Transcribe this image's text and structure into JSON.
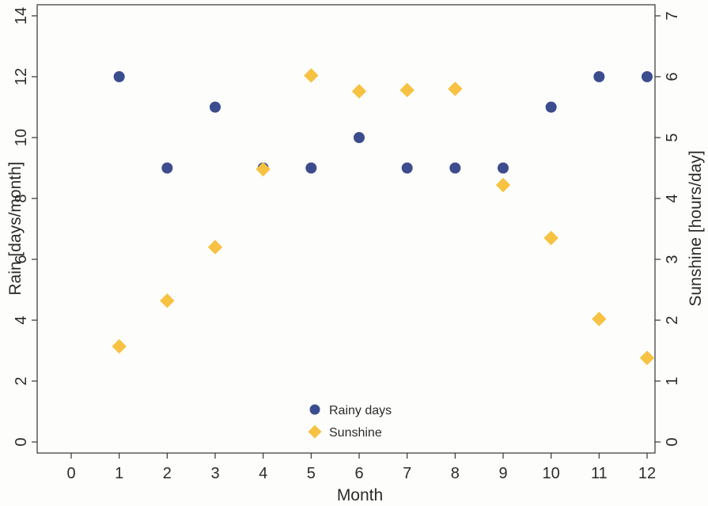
{
  "chart_data": {
    "type": "scatter",
    "title": "",
    "xlabel": "Month",
    "ylabel_left": "Rain [days/month]",
    "ylabel_right": "Sunshine [hours/day]",
    "xlim": [
      0,
      12
    ],
    "ylim_left": [
      0,
      14
    ],
    "ylim_right": [
      0,
      7
    ],
    "x_ticks": [
      0,
      1,
      2,
      3,
      4,
      5,
      6,
      7,
      8,
      9,
      10,
      11,
      12
    ],
    "y_left_ticks": [
      0,
      2,
      4,
      6,
      8,
      10,
      12,
      14
    ],
    "y_right_ticks": [
      0,
      1,
      2,
      3,
      4,
      5,
      6,
      7
    ],
    "grid": false,
    "legend_position": "bottom-center",
    "series": [
      {
        "name": "Rainy days",
        "axis": "left",
        "marker": "circle",
        "color": "#3b4c8f",
        "x": [
          1,
          2,
          3,
          4,
          5,
          6,
          7,
          8,
          9,
          10,
          11,
          12
        ],
        "y": [
          12,
          9,
          11,
          9,
          9,
          10,
          9,
          9,
          9,
          11,
          12,
          12
        ]
      },
      {
        "name": "Sunshine",
        "axis": "right",
        "marker": "diamond",
        "color": "#f7c242",
        "x": [
          1,
          2,
          3,
          4,
          5,
          6,
          7,
          8,
          9,
          10,
          11,
          12
        ],
        "y": [
          1.57,
          2.32,
          3.2,
          4.48,
          6.02,
          5.76,
          5.78,
          5.8,
          4.22,
          3.35,
          2.02,
          1.38
        ]
      }
    ]
  }
}
